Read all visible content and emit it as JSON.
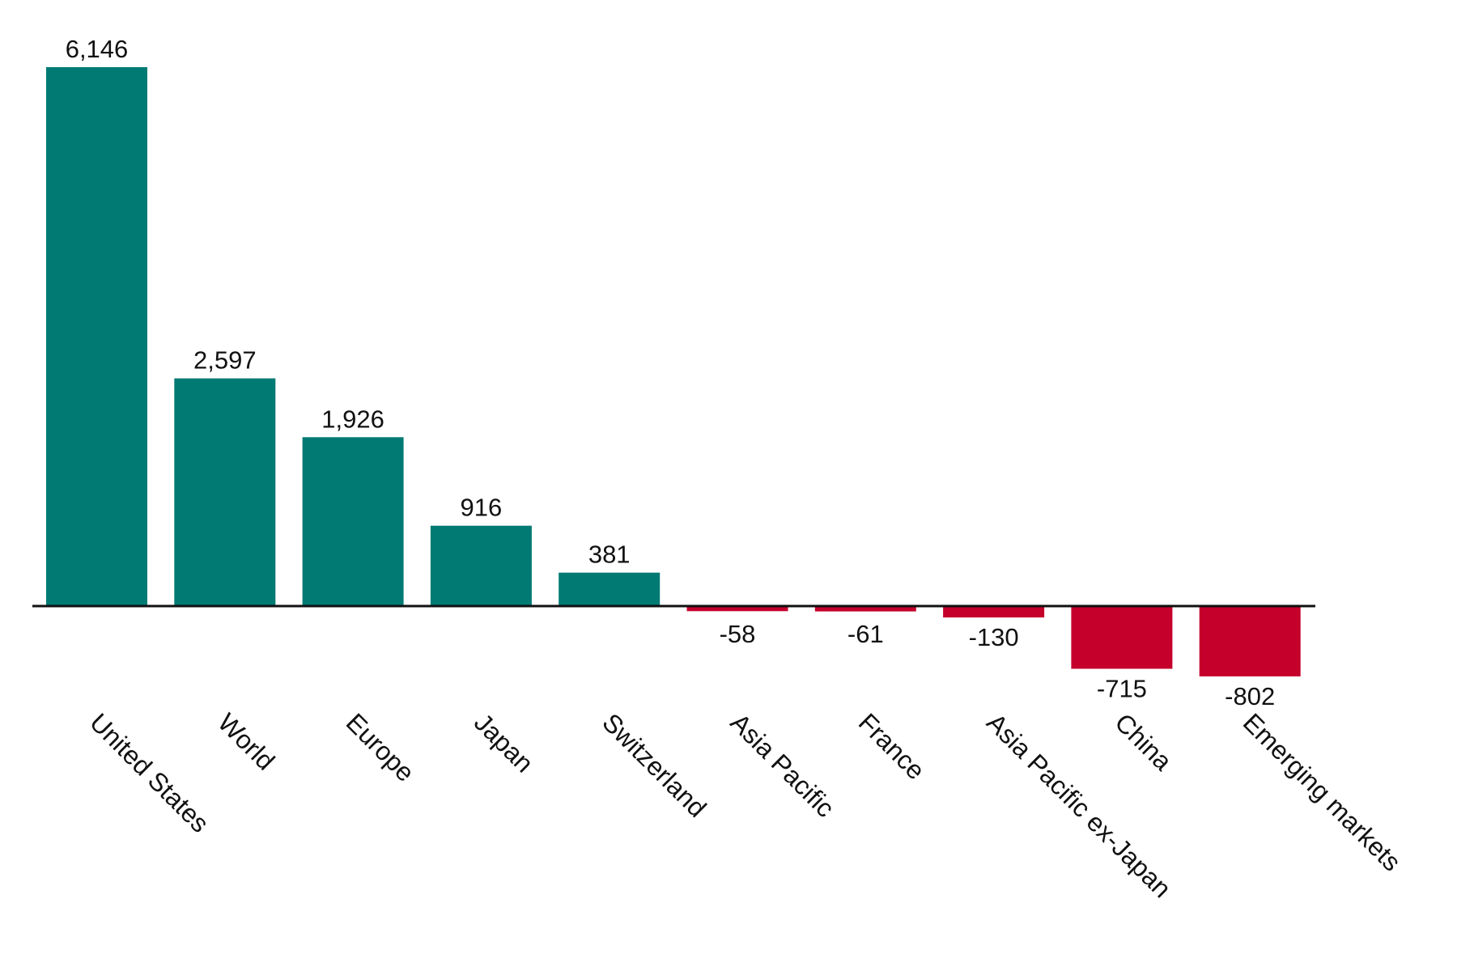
{
  "chart_data": {
    "type": "bar",
    "categories": [
      "United States",
      "World",
      "Europe",
      "Japan",
      "Switzerland",
      "Asia Pacific",
      "France",
      "Asia Pacific ex-Japan",
      "China",
      "Emerging markets"
    ],
    "values": [
      6146,
      2597,
      1926,
      916,
      381,
      -58,
      -61,
      -130,
      -715,
      -802
    ],
    "value_labels": [
      "6,146",
      "2,597",
      "1,926",
      "916",
      "381",
      "-58",
      "-61",
      "-130",
      "-715",
      "-802"
    ],
    "title": "",
    "xlabel": "",
    "ylabel": "",
    "ylim": [
      -1000,
      6500
    ],
    "grid": false,
    "legend": "none",
    "colors": {
      "positive": "#007a73",
      "negative": "#c4002b",
      "baseline": "#111111"
    }
  }
}
